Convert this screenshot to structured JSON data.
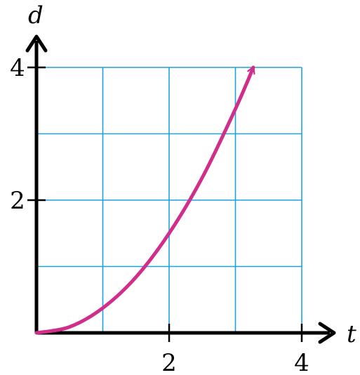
{
  "chart_data": {
    "type": "line",
    "xlabel": "t",
    "ylabel": "d",
    "xlim": [
      0,
      4
    ],
    "ylim": [
      0,
      4
    ],
    "x_ticks": [
      2,
      4
    ],
    "y_ticks": [
      2,
      4
    ],
    "x_tick_labels": [
      "2",
      "4"
    ],
    "y_tick_labels": [
      "2",
      "4"
    ],
    "grid": true,
    "grid_step": 1,
    "series": [
      {
        "x": [
          0,
          0.5,
          1,
          1.5,
          2,
          2.5,
          3,
          3.27
        ],
        "y": [
          0,
          0.09,
          0.375,
          0.84,
          1.5,
          2.34,
          3.375,
          4.0
        ],
        "end_arrow": true
      }
    ],
    "colors": {
      "curve": "#d12e8c",
      "grid": "#1aa3e0",
      "axis": "#000000"
    }
  }
}
